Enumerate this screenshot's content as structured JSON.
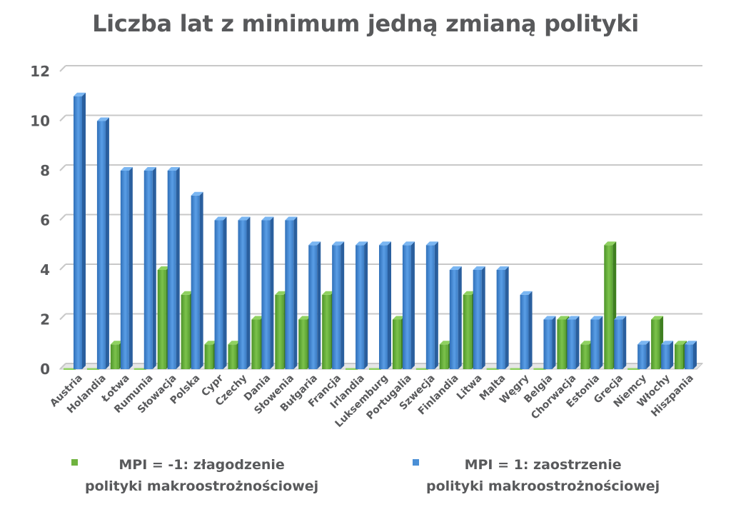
{
  "chart_data": {
    "type": "bar",
    "title": "Liczba lat z minimum jedną zmianą polityki",
    "categories": [
      "Austria",
      "Holandia",
      "Łotwa",
      "Rumunia",
      "Słowacja",
      "Polska",
      "Cypr",
      "Czechy",
      "Dania",
      "Słowenia",
      "Bułgaria",
      "Francja",
      "Irlandia",
      "Luksemburg",
      "Portugalia",
      "Szwecja",
      "Finlandia",
      "Litwa",
      "Malta",
      "Węgry",
      "Belgia",
      "Chorwacja",
      "Estonia",
      "Grecja",
      "Niemcy",
      "Włochy",
      "Hiszpania"
    ],
    "series": [
      {
        "name": "MPI = -1: złagodzenie polityki makroostrożnościowej",
        "color": "#6fb33f",
        "values": [
          0,
          0,
          1,
          0,
          4,
          3,
          1,
          1,
          2,
          3,
          2,
          3,
          0,
          0,
          2,
          0,
          1,
          3,
          0,
          0,
          0,
          2,
          1,
          5,
          0,
          2,
          1
        ]
      },
      {
        "name": "MPI = 1: zaostrzenie polityki makroostrożnościowej",
        "color": "#4a8fd6",
        "values": [
          11,
          10,
          8,
          8,
          8,
          7,
          6,
          6,
          6,
          6,
          5,
          5,
          5,
          5,
          5,
          5,
          4,
          4,
          4,
          3,
          2,
          2,
          2,
          2,
          1,
          1,
          1
        ]
      }
    ],
    "ylim": [
      0,
      12
    ],
    "yticks": [
      "0",
      "2",
      "4",
      "6",
      "8",
      "10",
      "12"
    ],
    "grid": true,
    "legend_position": "bottom"
  },
  "legend": {
    "green_line1": "MPI = -1: złagodzenie",
    "green_line2": "polityki makroostrożnościowej",
    "blue_line1": "MPI = 1: zaostrzenie",
    "blue_line2": "polityki makroostrożnościowej"
  }
}
